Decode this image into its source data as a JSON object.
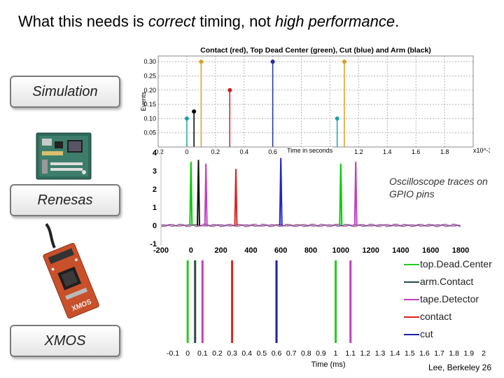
{
  "slide": {
    "title_before": "What this needs is ",
    "title_em1": "correct",
    "title_mid": " timing, not ",
    "title_em2": "high performance",
    "title_after": ".",
    "labels": {
      "simulation": "Simulation",
      "renesas": "Renesas",
      "xmos": "XMOS"
    },
    "footer": "Lee, Berkeley  26",
    "photos": {
      "renesas_board": "renesas-board-photo",
      "xmos_board": "xmos-board-photo"
    }
  },
  "chart_data": [
    {
      "type": "stem",
      "title": "Contact (red), Top Dead Center (green), Cut (blue) and Arm (black)",
      "xlabel": "Time in seconds",
      "ylabel": "Events",
      "x_multiplier": "x10^-3",
      "xlim": [
        -0.2,
        2.0
      ],
      "ylim": [
        0,
        0.32
      ],
      "xticks": [
        "-0.2",
        "0",
        "0.2",
        "0.4",
        "0.6",
        "0.8",
        "1",
        "1.2",
        "1.4",
        "1.6",
        "1.8"
      ],
      "yticks": [
        "0.05",
        "0.10",
        "0.15",
        "0.20",
        "0.25",
        "0.30"
      ],
      "series": [
        {
          "x": 0,
          "y": 0.1,
          "color": "#1fa3a3"
        },
        {
          "x": 0.05,
          "y": 0.125,
          "color": "#000000"
        },
        {
          "x": 0.1,
          "y": 0.3,
          "color": "#d9a21c"
        },
        {
          "x": 0.3,
          "y": 0.2,
          "color": "#cc1f1f"
        },
        {
          "x": 0.6,
          "y": 0.3,
          "color": "#1f2fa8"
        },
        {
          "x": 1.05,
          "y": 0.1,
          "color": "#1fa3a3"
        },
        {
          "x": 1.1,
          "y": 0.3,
          "color": "#d9a21c"
        }
      ]
    },
    {
      "type": "line",
      "annotation": "Oscilloscope traces on GPIO pins",
      "xlim": [
        -200,
        1800
      ],
      "ylim": [
        -1,
        4
      ],
      "xticks": [
        "-200",
        "0",
        "200",
        "400",
        "600",
        "800",
        "1000",
        "1200",
        "1400",
        "1600",
        "1800"
      ],
      "yticks": [
        "-1",
        "0",
        "1",
        "2",
        "3",
        "4"
      ],
      "pulses": [
        {
          "x": 0,
          "height": 3.5,
          "color": "#00cc00"
        },
        {
          "x": 50,
          "height": 3.6,
          "color": "#111111"
        },
        {
          "x": 100,
          "height": 3.4,
          "color": "#c040c0"
        },
        {
          "x": 300,
          "height": 3.1,
          "color": "#dd2222"
        },
        {
          "x": 600,
          "height": 3.7,
          "color": "#2222cc"
        },
        {
          "x": 1000,
          "height": 3.4,
          "color": "#00cc00"
        },
        {
          "x": 1100,
          "height": 3.5,
          "color": "#c040c0"
        }
      ]
    },
    {
      "type": "line",
      "xlabel": "Time (ms)",
      "xlim": [
        -0.1,
        2.0
      ],
      "xticks": [
        "-0.1",
        "0",
        "0.1",
        "0.2",
        "0.3",
        "0.4",
        "0.5",
        "0.6",
        "0.7",
        "0.8",
        "0.9",
        "1",
        "1.1",
        "1.2",
        "1.3",
        "1.4",
        "1.5",
        "1.6",
        "1.7",
        "1.8",
        "1.9",
        "2"
      ],
      "legend": [
        {
          "name": "top.Dead.Center",
          "color": "#22cc22"
        },
        {
          "name": "arm.Contact",
          "color": "#2a4a4a"
        },
        {
          "name": "tape.Detector",
          "color": "#c040c0"
        },
        {
          "name": "contact",
          "color": "#dd2222"
        },
        {
          "name": "cut",
          "color": "#1f1fa0"
        }
      ],
      "pulses": [
        {
          "x": 0,
          "color": "#22cc22"
        },
        {
          "x": 0.05,
          "color": "#2a4a4a"
        },
        {
          "x": 0.1,
          "color": "#c040c0"
        },
        {
          "x": 0.3,
          "color": "#dd2222"
        },
        {
          "x": 0.6,
          "color": "#1f1fa0"
        },
        {
          "x": 1.0,
          "color": "#22cc22"
        },
        {
          "x": 1.1,
          "color": "#c040c0"
        }
      ]
    }
  ]
}
